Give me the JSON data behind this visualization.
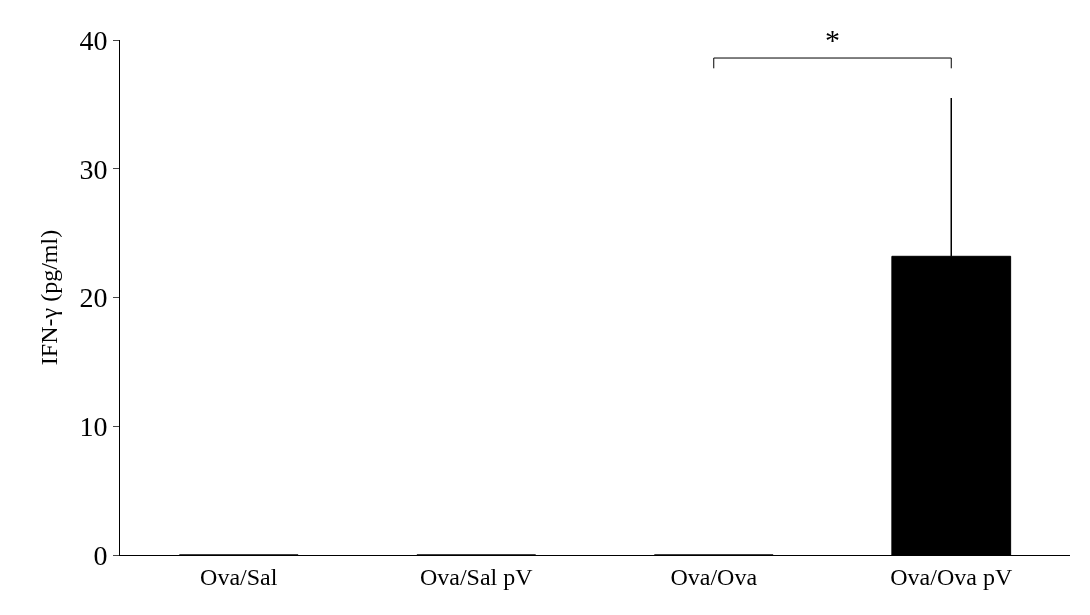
{
  "chart_data": {
    "type": "bar",
    "ylabel": "IFN-γ (pg/ml)",
    "categories": [
      "Ova/Sal",
      "Ova/Sal pV",
      "Ova/Ova",
      "Ova/Ova pV"
    ],
    "values": [
      0,
      0,
      0,
      23.2
    ],
    "errors": [
      null,
      null,
      null,
      12.3
    ],
    "color": "#000000",
    "ylim": [
      0,
      40
    ],
    "yticks": [
      0,
      10,
      20,
      30,
      40
    ],
    "legend": false,
    "annotations": [
      "*"
    ]
  }
}
